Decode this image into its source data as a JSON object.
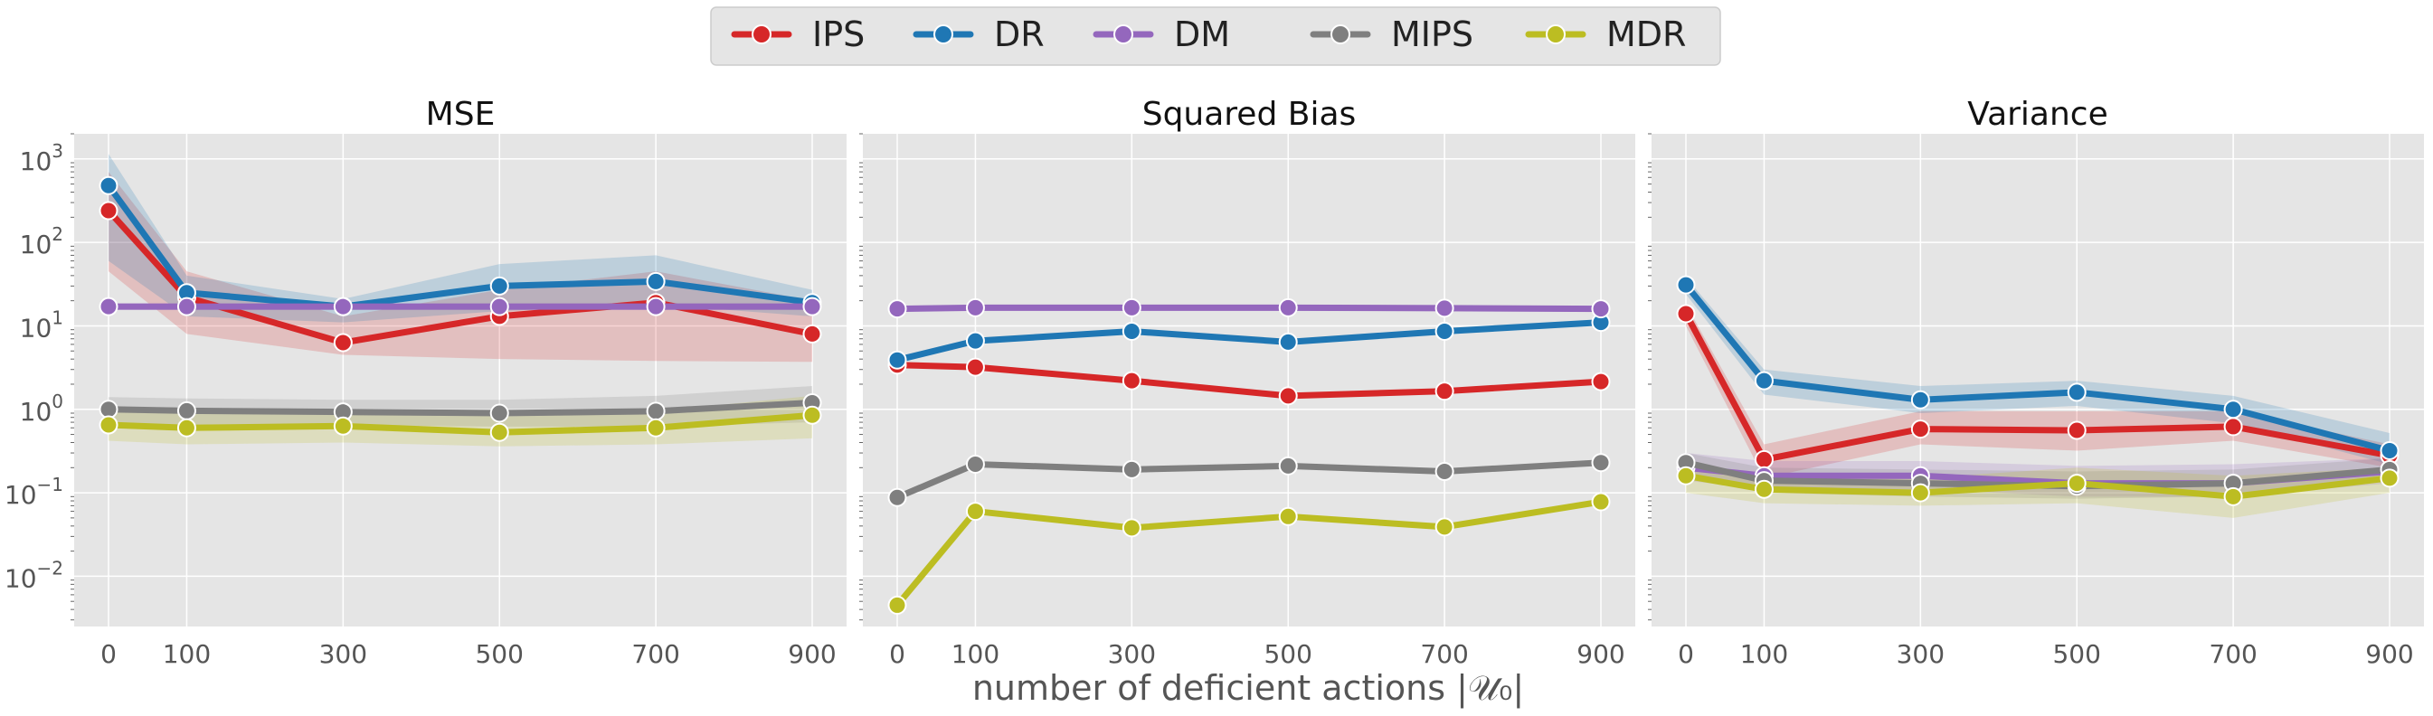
{
  "legend": {
    "placement": "top-center",
    "entries": [
      {
        "name": "IPS",
        "color": "#d62728"
      },
      {
        "name": "DR",
        "color": "#1f77b4"
      },
      {
        "name": "DM",
        "color": "#9467bd"
      },
      {
        "name": "MIPS",
        "color": "#7f7f7f"
      },
      {
        "name": "MDR",
        "color": "#bcbd22"
      }
    ]
  },
  "xlabel": "number of deficient actions |𝒰₀|",
  "chart_data": [
    {
      "type": "line",
      "title": "MSE",
      "yscale": "log",
      "ylim": [
        0.0025,
        2000
      ],
      "grid": true,
      "x": [
        0,
        100,
        300,
        500,
        700,
        900
      ],
      "xticks": [
        "0",
        "100",
        "300",
        "500",
        "700",
        "900"
      ],
      "yticks": [
        {
          "v": 0.01,
          "label": "10",
          "exp": "−2"
        },
        {
          "v": 0.1,
          "label": "10",
          "exp": "−1"
        },
        {
          "v": 1,
          "label": "10",
          "exp": "0"
        },
        {
          "v": 10,
          "label": "10",
          "exp": "1"
        },
        {
          "v": 100,
          "label": "10",
          "exp": "2"
        },
        {
          "v": 1000,
          "label": "10",
          "exp": "3"
        }
      ],
      "series": [
        {
          "name": "IPS",
          "values": [
            240,
            22,
            6.3,
            13,
            19,
            8
          ],
          "lower": [
            45,
            8,
            4.5,
            4,
            3.8,
            3.7
          ],
          "upper": [
            700,
            45,
            13,
            27,
            45,
            20
          ]
        },
        {
          "name": "DR",
          "values": [
            480,
            25,
            17,
            30,
            34,
            19
          ],
          "lower": [
            60,
            13,
            11,
            15,
            18,
            13
          ],
          "upper": [
            1150,
            40,
            21,
            55,
            70,
            27
          ]
        },
        {
          "name": "DM",
          "values": [
            17,
            17,
            17,
            17,
            17,
            17
          ],
          "lower": [
            15.5,
            15.5,
            15.5,
            15.5,
            15.5,
            15.5
          ],
          "upper": [
            18.5,
            18.5,
            18.5,
            18.5,
            18.5,
            18.5
          ]
        },
        {
          "name": "MIPS",
          "values": [
            1.0,
            0.96,
            0.93,
            0.9,
            0.95,
            1.2
          ],
          "lower": [
            0.7,
            0.65,
            0.65,
            0.62,
            0.62,
            0.7
          ],
          "upper": [
            1.4,
            1.35,
            1.3,
            1.3,
            1.45,
            1.9
          ]
        },
        {
          "name": "MDR",
          "values": [
            0.65,
            0.6,
            0.63,
            0.53,
            0.6,
            0.85
          ],
          "lower": [
            0.42,
            0.38,
            0.4,
            0.36,
            0.38,
            0.45
          ],
          "upper": [
            1.0,
            0.95,
            1.0,
            0.82,
            0.95,
            1.45
          ]
        }
      ]
    },
    {
      "type": "line",
      "title": "Squared Bias",
      "yscale": "log",
      "ylim": [
        0.0025,
        2000
      ],
      "grid": true,
      "x": [
        0,
        100,
        300,
        500,
        700,
        900
      ],
      "xticks": [
        "0",
        "100",
        "300",
        "500",
        "700",
        "900"
      ],
      "yticks": [],
      "series": [
        {
          "name": "IPS",
          "values": [
            3.4,
            3.2,
            2.2,
            1.45,
            1.65,
            2.15
          ]
        },
        {
          "name": "DR",
          "values": [
            3.9,
            6.6,
            8.6,
            6.4,
            8.6,
            11
          ]
        },
        {
          "name": "DM",
          "values": [
            16,
            16.5,
            16.5,
            16.5,
            16.3,
            16
          ]
        },
        {
          "name": "MIPS",
          "values": [
            0.088,
            0.22,
            0.19,
            0.21,
            0.18,
            0.23
          ]
        },
        {
          "name": "MDR",
          "values": [
            0.0045,
            0.06,
            0.038,
            0.052,
            0.039,
            0.078
          ]
        }
      ]
    },
    {
      "type": "line",
      "title": "Variance",
      "yscale": "log",
      "ylim": [
        0.0025,
        2000
      ],
      "grid": true,
      "x": [
        0,
        100,
        300,
        500,
        700,
        900
      ],
      "xticks": [
        "0",
        "100",
        "300",
        "500",
        "700",
        "900"
      ],
      "yticks": [],
      "series": [
        {
          "name": "IPS",
          "values": [
            14,
            0.25,
            0.58,
            0.56,
            0.62,
            0.28
          ],
          "lower": [
            10,
            0.15,
            0.38,
            0.32,
            0.42,
            0.2
          ],
          "upper": [
            18,
            0.38,
            0.95,
            0.95,
            0.95,
            0.38
          ]
        },
        {
          "name": "DR",
          "values": [
            31,
            2.2,
            1.3,
            1.6,
            1.0,
            0.32
          ],
          "lower": [
            24,
            1.5,
            0.9,
            1.1,
            0.68,
            0.22
          ],
          "upper": [
            38,
            3.0,
            1.9,
            2.2,
            1.45,
            0.52
          ]
        },
        {
          "name": "DM",
          "values": [
            0.2,
            0.16,
            0.16,
            0.13,
            0.13,
            0.18
          ],
          "lower": [
            0.14,
            0.11,
            0.11,
            0.09,
            0.09,
            0.13
          ],
          "upper": [
            0.3,
            0.24,
            0.24,
            0.21,
            0.22,
            0.26
          ]
        },
        {
          "name": "MIPS",
          "values": [
            0.23,
            0.14,
            0.13,
            0.12,
            0.13,
            0.19
          ],
          "lower": [
            0.17,
            0.1,
            0.09,
            0.085,
            0.09,
            0.14
          ],
          "upper": [
            0.3,
            0.2,
            0.19,
            0.18,
            0.19,
            0.26
          ]
        },
        {
          "name": "MDR",
          "values": [
            0.16,
            0.11,
            0.1,
            0.13,
            0.09,
            0.15
          ],
          "lower": [
            0.1,
            0.075,
            0.07,
            0.075,
            0.05,
            0.1
          ],
          "upper": [
            0.23,
            0.16,
            0.15,
            0.2,
            0.16,
            0.2
          ]
        }
      ]
    }
  ]
}
